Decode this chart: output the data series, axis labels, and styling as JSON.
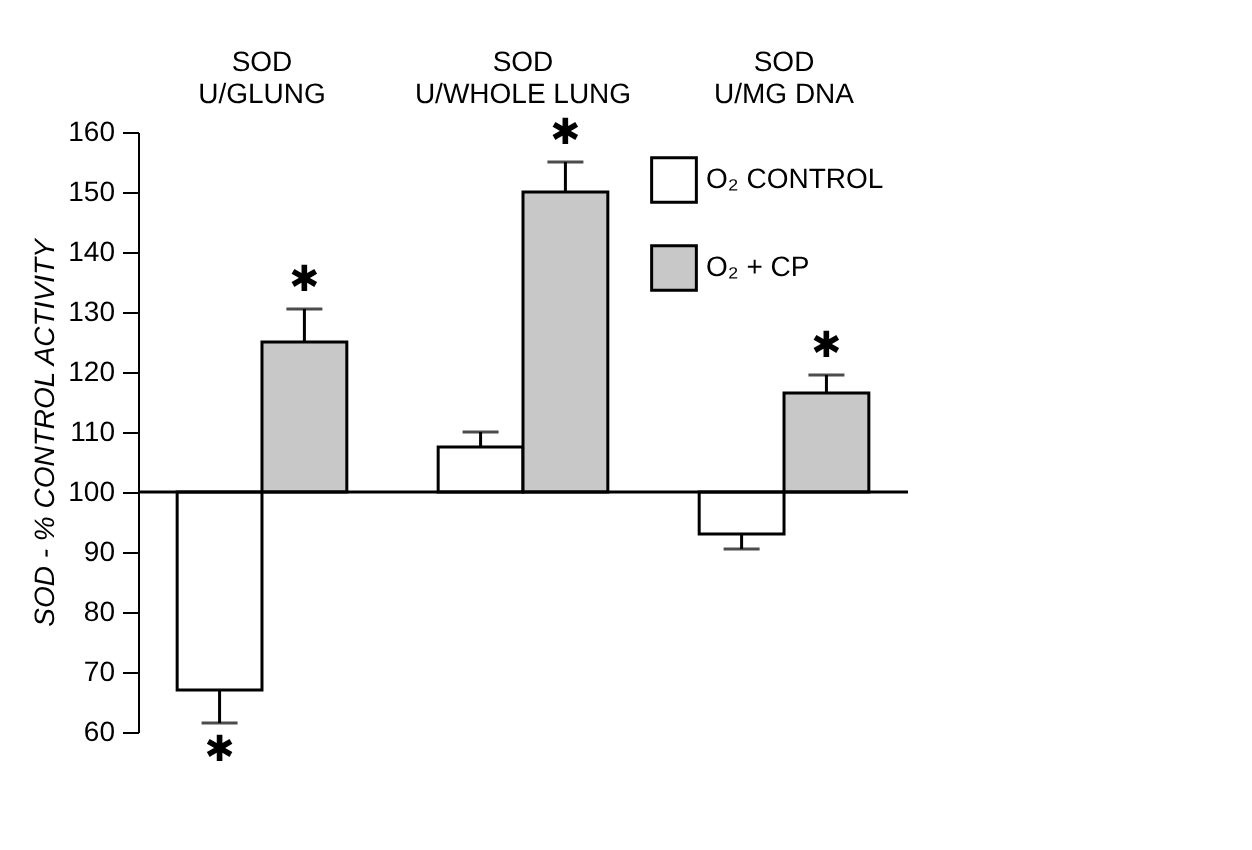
{
  "chart_data": {
    "type": "bar",
    "categories": [
      "SOD\nU/GLUNG",
      "SOD\nU/WHOLE LUNG",
      "SOD\nU/MG DNA"
    ],
    "ylabel": "SOD - % CONTROL ACTIVITY",
    "ylim": [
      60,
      160
    ],
    "yticks": [
      60,
      70,
      80,
      90,
      100,
      110,
      120,
      130,
      140,
      150,
      160
    ],
    "grid": false,
    "legend": "top right",
    "series": [
      {
        "name": "O₂ CONTROL",
        "color": "#ffffff",
        "base": [
          100,
          100,
          100
        ],
        "values": [
          -33,
          7.5,
          -7
        ],
        "value_labels": [
          "✱",
          null,
          null
        ],
        "errors": [
          [
            61.5,
            67
          ],
          [
            107.5,
            110
          ],
          [
            90.5,
            93
          ]
        ]
      },
      {
        "name": "O₂ + CP",
        "color": "#c8c8c8",
        "base": [
          100,
          100,
          100
        ],
        "values": [
          25,
          50,
          16.5
        ],
        "value_labels": [
          "✱",
          "✱",
          "✱"
        ],
        "errors": [
          [
            125,
            130.5
          ],
          [
            150,
            155
          ],
          [
            116.5,
            119.5
          ]
        ]
      }
    ],
    "ref_lines": [
      {
        "axis": "y",
        "value": 100
      }
    ]
  }
}
